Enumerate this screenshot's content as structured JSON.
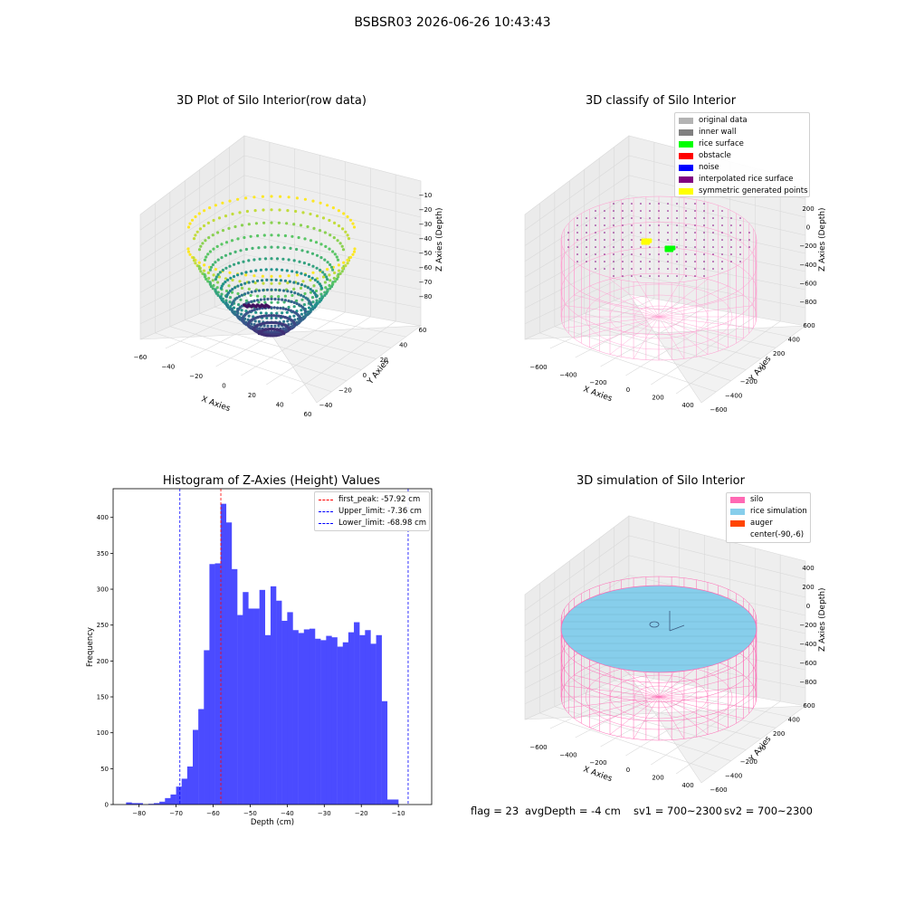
{
  "suptitle": "BSBSR03 2026-06-26 10:43:43",
  "chart_data": [
    {
      "type": "scatter",
      "title": "3D Plot of Silo Interior(row data)",
      "xlabel": "X Axies",
      "ylabel": "Y Axies",
      "zlabel": "Z Axies (Depth)",
      "x_ticks": [
        "−60",
        "−40",
        "−20",
        "0",
        "20",
        "40",
        "60"
      ],
      "y_ticks": [
        "−40",
        "−20",
        "0",
        "20",
        "40",
        "60"
      ],
      "z_ticks": [
        "−10",
        "−20",
        "−30",
        "−40",
        "−50",
        "−60",
        "−70",
        "−80"
      ],
      "xlim": [
        -60,
        60
      ],
      "ylim": [
        -50,
        60
      ],
      "zlim": [
        -85,
        -5
      ],
      "colormap": "viridis",
      "colors": {
        "low": "#440154",
        "mid": "#21918c",
        "high": "#fde725"
      }
    },
    {
      "type": "scatter",
      "title": "3D classify of Silo Interior",
      "xlabel": "X Axies",
      "ylabel": "Y Axies",
      "zlabel": "Z Axies (Depth)",
      "x_ticks": [
        "−600",
        "−400",
        "−200",
        "0",
        "200",
        "400"
      ],
      "y_ticks": [
        "600",
        "400",
        "200",
        "0",
        "−200",
        "−400",
        "−600"
      ],
      "z_ticks": [
        "200",
        "0",
        "−200",
        "−400",
        "−600",
        "−800"
      ],
      "legend_position": "top-right",
      "legend": [
        {
          "label": "original data",
          "color": "#b3b3b3"
        },
        {
          "label": "inner wall",
          "color": "#808080"
        },
        {
          "label": "rice surface",
          "color": "#00ff00"
        },
        {
          "label": "obstacle",
          "color": "#ff0000"
        },
        {
          "label": "noise",
          "color": "#0000ff"
        },
        {
          "label": "interpolated rice surface",
          "color": "#800080"
        },
        {
          "label": "symmetric generated points",
          "color": "#ffff00"
        }
      ],
      "wire_color": "#ff9ccf"
    },
    {
      "type": "bar",
      "title": "Histogram of Z-Axies (Height) Values",
      "xlabel": "Depth (cm)",
      "ylabel": "Frequency",
      "xlim": [
        -87,
        -1
      ],
      "ylim": [
        0,
        440
      ],
      "x_ticks": [
        -80,
        -70,
        -60,
        -50,
        -40,
        -30,
        -20,
        -10
      ],
      "y_ticks": [
        0,
        50,
        100,
        150,
        200,
        250,
        300,
        350,
        400
      ],
      "bar_color": "#4b4bff",
      "bin_start": -83.5,
      "bin_width": 1.5,
      "values": [
        3,
        2,
        2,
        0,
        1,
        2,
        4,
        9,
        14,
        25,
        36,
        53,
        104,
        133,
        215,
        335,
        336,
        419,
        393,
        328,
        264,
        296,
        273,
        273,
        299,
        236,
        304,
        284,
        256,
        268,
        243,
        239,
        244,
        245,
        231,
        229,
        235,
        233,
        220,
        226,
        240,
        254,
        236,
        243,
        224,
        236,
        144,
        7,
        7
      ],
      "lines": [
        {
          "label": "first_peak: -57.92 cm",
          "value": -57.92,
          "color": "#ff0000"
        },
        {
          "label": "Upper_limit: -7.36 cm",
          "value": -7.36,
          "color": "#0000ff"
        },
        {
          "label": "Lower_limit: -68.98 cm",
          "value": -68.98,
          "color": "#0000ff"
        }
      ],
      "legend_position": "top-right"
    },
    {
      "type": "scatter",
      "title": "3D simulation of Silo Interior",
      "xlabel": "X Axies",
      "ylabel": "Y Axies",
      "zlabel": "Z Axies (Depth)",
      "x_ticks": [
        "−600",
        "−400",
        "−200",
        "0",
        "200",
        "400"
      ],
      "y_ticks": [
        "600",
        "400",
        "200",
        "0",
        "−200",
        "−400",
        "−600"
      ],
      "z_ticks": [
        "400",
        "200",
        "0",
        "−200",
        "−400",
        "−600",
        "−800"
      ],
      "legend_position": "top-right",
      "legend": [
        {
          "label": "silo",
          "color": "#ff69b4"
        },
        {
          "label": "rice simulation",
          "color": "#87ceeb"
        },
        {
          "label": "auger",
          "color": "#ff4500"
        },
        {
          "label": "center(-90,-6)",
          "color": ""
        }
      ],
      "wire_color": "#ff69b4",
      "surface_color": "#87ceeb"
    }
  ],
  "footer": {
    "flag": "flag = 23",
    "avg_depth": "avgDepth = -4 cm",
    "sv1": "sv1 = 700~2300",
    "sv2": "sv2 = 700~2300"
  }
}
